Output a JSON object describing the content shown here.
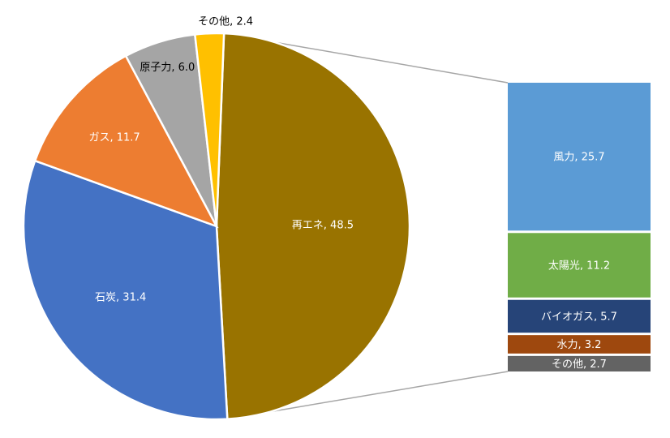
{
  "chart_data": {
    "type": "pie",
    "subtype": "bar-of-pie",
    "pie": {
      "slices": [
        {
          "label": "再エネ",
          "value": 48.5,
          "color": "#997300"
        },
        {
          "label": "石炭",
          "value": 31.4,
          "color": "#4472C4"
        },
        {
          "label": "ガス",
          "value": 11.7,
          "color": "#ED7D31"
        },
        {
          "label": "原子力",
          "value": 6.0,
          "color": "#A5A5A5"
        },
        {
          "label": "その他",
          "value": 2.4,
          "color": "#FFC000"
        }
      ]
    },
    "bar": {
      "breakdown_of": "再エネ",
      "segments": [
        {
          "label": "風力",
          "value": 25.7,
          "color": "#5B9BD5"
        },
        {
          "label": "太陽光",
          "value": 11.2,
          "color": "#70AD47"
        },
        {
          "label": "バイオガス",
          "value": 5.7,
          "color": "#264478"
        },
        {
          "label": "水力",
          "value": 3.2,
          "color": "#9E480E"
        },
        {
          "label": "その他",
          "value": 2.7,
          "color": "#636363"
        }
      ]
    },
    "legend": "none"
  }
}
